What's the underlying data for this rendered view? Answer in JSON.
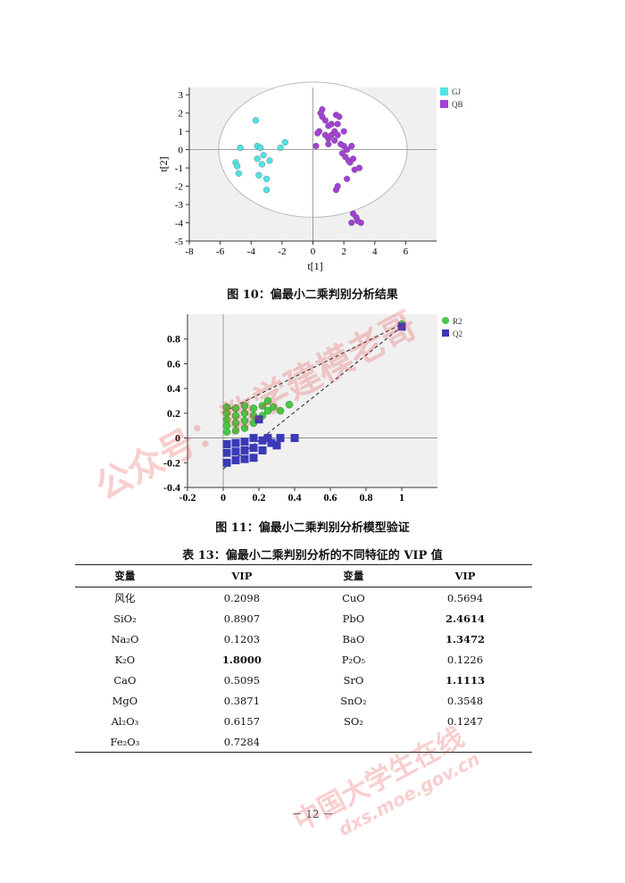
{
  "figure10": {
    "caption": "图 10：偏最小二乘判别分析结果",
    "chart_data": {
      "type": "scatter",
      "xlabel": "t[1]",
      "ylabel": "t[2]",
      "xlim": [
        -8,
        8
      ],
      "ylim": [
        -5,
        3.4
      ],
      "x_ticks": [
        "-8",
        "-6",
        "-4",
        "-2",
        "0",
        "2",
        "4",
        "6"
      ],
      "y_ticks": [
        "3",
        "2",
        "1",
        "0",
        "-1",
        "-2",
        "-3",
        "-4",
        "-5"
      ],
      "legend": [
        "GJ",
        "QB"
      ],
      "colors": {
        "GJ": "#4fe3e3",
        "QB": "#a43fd8"
      },
      "series": [
        {
          "name": "GJ",
          "points": [
            [
              -3.7,
              1.6
            ],
            [
              -3.6,
              0.2
            ],
            [
              -3.4,
              0.1
            ],
            [
              -2.1,
              0.1
            ],
            [
              -1.8,
              0.4
            ],
            [
              -4.7,
              0.1
            ],
            [
              -5.0,
              -0.7
            ],
            [
              -4.9,
              -0.9
            ],
            [
              -4.8,
              -1.3
            ],
            [
              -3.6,
              -0.5
            ],
            [
              -3.3,
              -0.8
            ],
            [
              -2.8,
              -0.6
            ],
            [
              -3.5,
              -1.4
            ],
            [
              -3.0,
              -1.6
            ],
            [
              -3.0,
              -2.2
            ],
            [
              -3.2,
              -0.3
            ]
          ]
        },
        {
          "name": "QB",
          "points": [
            [
              0.6,
              1.8
            ],
            [
              0.4,
              1.0
            ],
            [
              0.2,
              0.2
            ],
            [
              0.5,
              2.0
            ],
            [
              0.6,
              2.2
            ],
            [
              0.8,
              1.6
            ],
            [
              0.8,
              0.8
            ],
            [
              1.0,
              1.3
            ],
            [
              1.0,
              0.6
            ],
            [
              1.2,
              1.4
            ],
            [
              1.2,
              0.8
            ],
            [
              1.4,
              1.0
            ],
            [
              1.4,
              0.5
            ],
            [
              1.6,
              1.4
            ],
            [
              1.6,
              0.8
            ],
            [
              1.7,
              1.8
            ],
            [
              1.5,
              1.9
            ],
            [
              2.0,
              1.0
            ],
            [
              1.8,
              0.3
            ],
            [
              1.9,
              -0.2
            ],
            [
              2.0,
              0.2
            ],
            [
              2.1,
              -0.4
            ],
            [
              2.2,
              0.0
            ],
            [
              2.3,
              -0.6
            ],
            [
              2.5,
              0.2
            ],
            [
              2.4,
              -0.7
            ],
            [
              2.6,
              -0.5
            ],
            [
              2.7,
              -1.1
            ],
            [
              2.2,
              -1.6
            ],
            [
              1.6,
              -2.0
            ],
            [
              1.5,
              -2.2
            ],
            [
              2.6,
              -3.5
            ],
            [
              2.8,
              -3.7
            ],
            [
              2.9,
              -3.9
            ],
            [
              3.1,
              -4.0
            ],
            [
              2.5,
              -4.0
            ],
            [
              3.0,
              -1.0
            ],
            [
              0.3,
              0.9
            ],
            [
              1.0,
              0.3
            ]
          ]
        }
      ]
    }
  },
  "figure11": {
    "caption": "图 11：偏最小二乘判别分析模型验证",
    "chart_data": {
      "type": "scatter",
      "xlim": [
        -0.2,
        1.2
      ],
      "ylim": [
        -0.4,
        1.0
      ],
      "x_ticks": [
        "-0.2",
        "0",
        "0.2",
        "0.4",
        "0.6",
        "0.8",
        "1"
      ],
      "y_ticks": [
        "0.8",
        "0.6",
        "0.4",
        "0.2",
        "0",
        "-0.2",
        "-0.4"
      ],
      "legend": [
        "R2",
        "Q2"
      ],
      "colors": {
        "R2": "#47c847",
        "Q2": "#3a3ab8"
      },
      "series": [
        {
          "name": "R2",
          "points": [
            [
              0.02,
              0.25
            ],
            [
              0.02,
              0.2
            ],
            [
              0.02,
              0.15
            ],
            [
              0.02,
              0.1
            ],
            [
              0.02,
              0.05
            ],
            [
              0.07,
              0.24
            ],
            [
              0.07,
              0.18
            ],
            [
              0.07,
              0.12
            ],
            [
              0.07,
              0.06
            ],
            [
              0.12,
              0.26
            ],
            [
              0.12,
              0.2
            ],
            [
              0.12,
              0.14
            ],
            [
              0.12,
              0.08
            ],
            [
              0.17,
              0.24
            ],
            [
              0.17,
              0.18
            ],
            [
              0.17,
              0.12
            ],
            [
              0.22,
              0.26
            ],
            [
              0.22,
              0.18
            ],
            [
              0.25,
              0.3
            ],
            [
              0.25,
              0.22
            ],
            [
              0.28,
              0.25
            ],
            [
              0.32,
              0.22
            ],
            [
              0.37,
              0.27
            ],
            [
              1.0,
              0.92
            ]
          ]
        },
        {
          "name": "Q2",
          "points": [
            [
              0.02,
              -0.05
            ],
            [
              0.02,
              -0.12
            ],
            [
              0.02,
              -0.2
            ],
            [
              0.07,
              -0.04
            ],
            [
              0.07,
              -0.11
            ],
            [
              0.07,
              -0.18
            ],
            [
              0.12,
              -0.03
            ],
            [
              0.12,
              -0.1
            ],
            [
              0.12,
              -0.17
            ],
            [
              0.17,
              0.0
            ],
            [
              0.17,
              -0.08
            ],
            [
              0.17,
              -0.16
            ],
            [
              0.22,
              -0.02
            ],
            [
              0.22,
              -0.1
            ],
            [
              0.25,
              0.0
            ],
            [
              0.27,
              -0.04
            ],
            [
              0.3,
              -0.06
            ],
            [
              0.32,
              0.0
            ],
            [
              0.4,
              0.0
            ],
            [
              0.2,
              0.15
            ],
            [
              1.0,
              0.9
            ]
          ]
        }
      ]
    }
  },
  "table13": {
    "caption": "表 13：偏最小二乘判别分析的不同特征的 VIP 值",
    "headers": [
      "变量",
      "VIP",
      "变量",
      "VIP"
    ],
    "rows": [
      {
        "v1": "风化",
        "n1": "0.2098",
        "v2": "CuO",
        "n2": "0.5694"
      },
      {
        "v1": "SiO₂",
        "n1": "0.8907",
        "v2": "PbO",
        "n2": "2.4614"
      },
      {
        "v1": "Na₂O",
        "n1": "0.1203",
        "v2": "BaO",
        "n2": "1.3472"
      },
      {
        "v1": "K₂O",
        "n1": "1.8000",
        "v2": "P₂O₅",
        "n2": "0.1226"
      },
      {
        "v1": "CaO",
        "n1": "0.5095",
        "v2": "SrO",
        "n2": "1.1113"
      },
      {
        "v1": "MgO",
        "n1": "0.3871",
        "v2": "SnO₂",
        "n2": "0.3548"
      },
      {
        "v1": "Al₂O₃",
        "n1": "0.6157",
        "v2": "SO₂",
        "n2": "0.1247"
      },
      {
        "v1": "Fe₂O₃",
        "n1": "0.7284",
        "v2": "",
        "n2": ""
      }
    ]
  },
  "watermarks": {
    "wm1": "公众号：数学建模老哥",
    "wm2": "中国大学生在线",
    "wm3": "dxs.moe.gov.cn"
  },
  "page_number": "－ 12 －"
}
